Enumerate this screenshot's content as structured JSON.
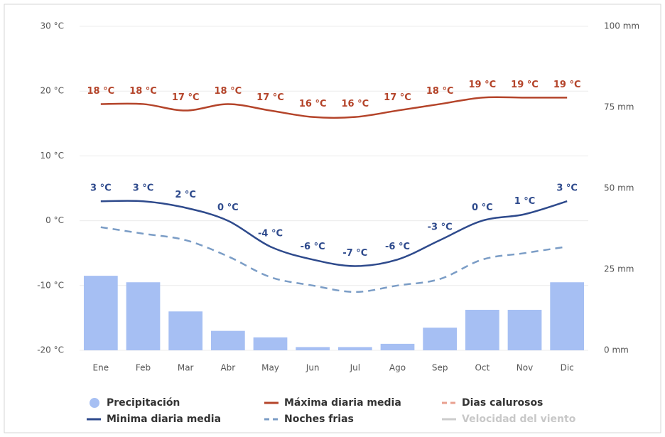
{
  "chart_data": {
    "type": "combo",
    "categories": [
      "Ene",
      "Feb",
      "Mar",
      "Abr",
      "May",
      "Jun",
      "Jul",
      "Ago",
      "Sep",
      "Oct",
      "Nov",
      "Dic"
    ],
    "ylim": [
      -20,
      30
    ],
    "yticks": [
      {
        "value": -20,
        "label": "-20 °C"
      },
      {
        "value": -10,
        "label": "-10 °C"
      },
      {
        "value": 0,
        "label": "0 °C"
      },
      {
        "value": 10,
        "label": "10 °C"
      },
      {
        "value": 20,
        "label": "20 °C"
      },
      {
        "value": 30,
        "label": "30 °C"
      }
    ],
    "y2lim": [
      0,
      100
    ],
    "y2ticks": [
      {
        "value": 0,
        "label": "0 mm"
      },
      {
        "value": 25,
        "label": "25 mm"
      },
      {
        "value": 50,
        "label": "50 mm"
      },
      {
        "value": 75,
        "label": "75 mm"
      },
      {
        "value": 100,
        "label": "100 mm"
      }
    ],
    "grid": true,
    "series": [
      {
        "name": "Precipitación",
        "type": "bar",
        "axis": "y2",
        "color": "#a6bff3",
        "visible": true,
        "values": [
          23,
          21,
          12,
          6,
          4,
          1,
          1,
          2,
          7,
          12.5,
          12.5,
          21
        ]
      },
      {
        "name": "Máxima diaria media",
        "type": "line",
        "color": "#b4442a",
        "dash": false,
        "visible": true,
        "values": [
          18,
          18,
          17,
          18,
          17,
          16,
          16,
          17,
          18,
          19,
          19,
          19
        ],
        "value_labels": [
          "18 °C",
          "18 °C",
          "17 °C",
          "18 °C",
          "17 °C",
          "16 °C",
          "16 °C",
          "17 °C",
          "18 °C",
          "19 °C",
          "19 °C",
          "19 °C"
        ]
      },
      {
        "name": "Dias calurosos",
        "type": "line",
        "color": "#e9a08f",
        "dash": true,
        "visible": true,
        "values": [
          null,
          null,
          null,
          null,
          null,
          null,
          null,
          null,
          null,
          null,
          null,
          null
        ]
      },
      {
        "name": "Minima diaria media",
        "type": "line",
        "color": "#2e4a8c",
        "dash": false,
        "visible": true,
        "values": [
          3,
          3,
          2,
          0,
          -4,
          -6,
          -7,
          -6,
          -3,
          0,
          1,
          3
        ],
        "value_labels": [
          "3 °C",
          "3 °C",
          "2 °C",
          "0 °C",
          "-4 °C",
          "-6 °C",
          "-7 °C",
          "-6 °C",
          "-3 °C",
          "0 °C",
          "1 °C",
          "3 °C"
        ]
      },
      {
        "name": "Noches frias",
        "type": "line",
        "color": "#7b9dc6",
        "dash": true,
        "visible": true,
        "values": [
          -1,
          -2,
          -3,
          -5.5,
          -8.7,
          -10,
          -11,
          -10,
          -9,
          -6,
          -5,
          -4
        ]
      },
      {
        "name": "Velocidad del viento",
        "type": "line",
        "color": "#cccccc",
        "dash": false,
        "visible": false,
        "values": [
          null,
          null,
          null,
          null,
          null,
          null,
          null,
          null,
          null,
          null,
          null,
          null
        ]
      }
    ]
  }
}
